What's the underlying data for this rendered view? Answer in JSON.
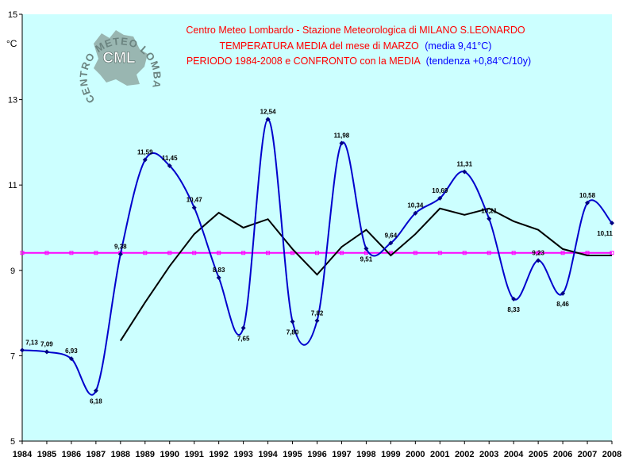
{
  "chart_data": {
    "type": "line",
    "title": "Centro Meteo Lombardo - Stazione Meteorologica di MILANO S.LEONARDO",
    "subtitle_1": "TEMPERATURA MEDIA del mese di MARZO",
    "subtitle_1_extra": "(media 9,41°C)",
    "subtitle_2": "PERIODO 1984-2008 e CONFRONTO con la MEDIA",
    "subtitle_2_extra": "(tendenza +0,84°C/10y)",
    "ylabel": "°C",
    "ylim": [
      5,
      15
    ],
    "yticks": [
      5,
      7,
      9,
      11,
      13,
      15
    ],
    "grid": false,
    "colors": {
      "background": "#ccffff",
      "temperature": "#0000cc",
      "mean": "#ff00ff",
      "moving_average": "#000000",
      "title_red": "#ff0000",
      "title_blue": "#0000ff"
    },
    "logo": {
      "text_arc": "CENTRO METEO LOMBARDO",
      "text_center": "CML"
    },
    "x": [
      1984,
      1985,
      1986,
      1987,
      1988,
      1989,
      1990,
      1991,
      1992,
      1993,
      1994,
      1995,
      1996,
      1997,
      1998,
      1999,
      2000,
      2001,
      2002,
      2003,
      2004,
      2005,
      2006,
      2007,
      2008
    ],
    "series": [
      {
        "values": [
          7.13,
          7.09,
          6.93,
          6.18,
          9.38,
          11.59,
          11.45,
          10.47,
          8.83,
          7.65,
          12.54,
          7.8,
          7.82,
          11.98,
          9.51,
          9.64,
          10.34,
          10.69,
          11.31,
          10.21,
          8.33,
          9.23,
          8.46,
          10.58,
          10.11
        ],
        "labels": [
          "7,13",
          "7,09",
          "6,93",
          "6,18",
          "9,38",
          "11,59",
          "11,45",
          "10,47",
          "8,83",
          "7,65",
          "12,54",
          "7,80",
          "7,82",
          "11,98",
          "9,51",
          "9,64",
          "10,34",
          "10,69",
          "11,31",
          "10,21",
          "8,33",
          "9,23",
          "8,46",
          "10,58",
          "10,11"
        ]
      },
      {
        "values": [
          null,
          null,
          null,
          null,
          7.35,
          8.25,
          9.1,
          9.85,
          10.35,
          10.0,
          10.2,
          9.5,
          8.9,
          9.55,
          9.95,
          9.35,
          9.85,
          10.45,
          10.3,
          10.45,
          10.15,
          9.95,
          9.5,
          9.35,
          9.35
        ]
      },
      {
        "values": [
          9.41,
          9.41,
          9.41,
          9.41,
          9.41,
          9.41,
          9.41,
          9.41,
          9.41,
          9.41,
          9.41,
          9.41,
          9.41,
          9.41,
          9.41,
          9.41,
          9.41,
          9.41,
          9.41,
          9.41,
          9.41,
          9.41,
          9.41,
          9.41,
          9.41
        ]
      }
    ]
  }
}
